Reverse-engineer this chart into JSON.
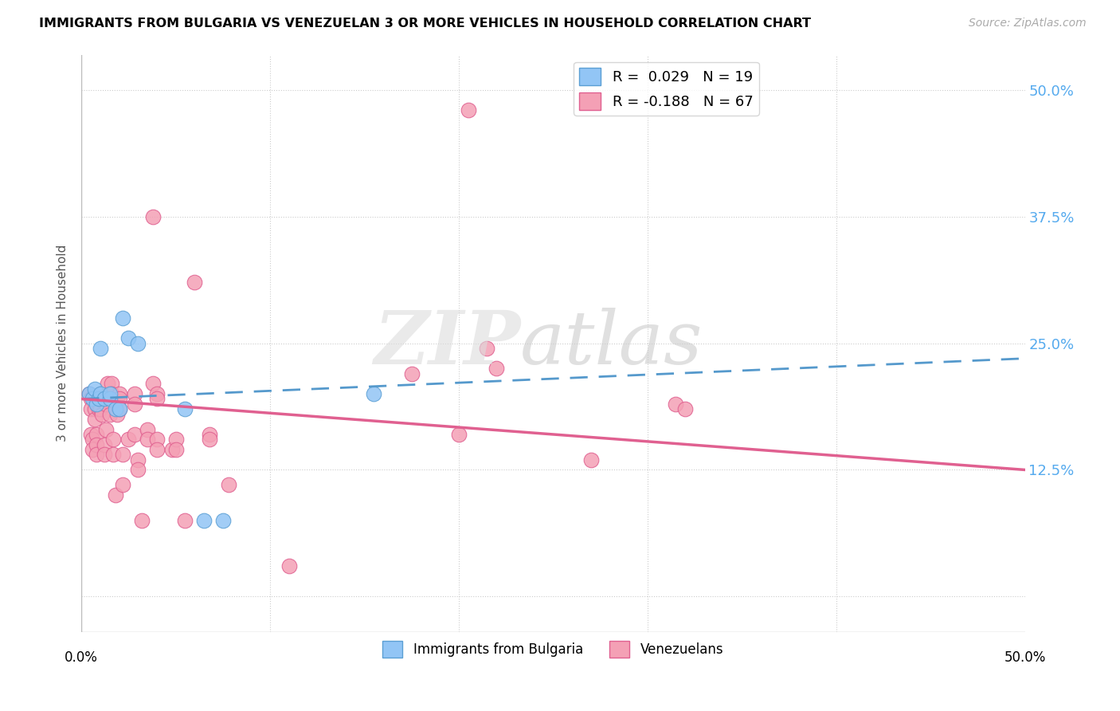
{
  "title": "IMMIGRANTS FROM BULGARIA VS VENEZUELAN 3 OR MORE VEHICLES IN HOUSEHOLD CORRELATION CHART",
  "source": "Source: ZipAtlas.com",
  "ylabel": "3 or more Vehicles in Household",
  "ytick_vals": [
    0.0,
    0.125,
    0.25,
    0.375,
    0.5
  ],
  "ytick_labels": [
    "",
    "12.5%",
    "25.0%",
    "37.5%",
    "50.0%"
  ],
  "xlim": [
    0.0,
    0.5
  ],
  "ylim": [
    -0.035,
    0.535
  ],
  "bulgaria_color": "#92C5F5",
  "venezuela_color": "#F4A0B5",
  "bulgaria_edge_color": "#5B9FD4",
  "venezuela_edge_color": "#E06090",
  "bulgaria_line_color": "#5599CC",
  "venezuela_line_color": "#E06090",
  "watermark_zip": "ZIP",
  "watermark_atlas": "atlas",
  "bulgaria_points": [
    [
      0.004,
      0.2
    ],
    [
      0.006,
      0.195
    ],
    [
      0.007,
      0.205
    ],
    [
      0.008,
      0.19
    ],
    [
      0.009,
      0.195
    ],
    [
      0.01,
      0.2
    ],
    [
      0.01,
      0.245
    ],
    [
      0.012,
      0.195
    ],
    [
      0.015,
      0.195
    ],
    [
      0.015,
      0.2
    ],
    [
      0.018,
      0.185
    ],
    [
      0.02,
      0.185
    ],
    [
      0.022,
      0.275
    ],
    [
      0.025,
      0.255
    ],
    [
      0.03,
      0.25
    ],
    [
      0.055,
      0.185
    ],
    [
      0.065,
      0.075
    ],
    [
      0.075,
      0.075
    ],
    [
      0.155,
      0.2
    ]
  ],
  "venezuela_points": [
    [
      0.004,
      0.2
    ],
    [
      0.005,
      0.195
    ],
    [
      0.005,
      0.185
    ],
    [
      0.005,
      0.16
    ],
    [
      0.006,
      0.155
    ],
    [
      0.006,
      0.145
    ],
    [
      0.007,
      0.195
    ],
    [
      0.007,
      0.185
    ],
    [
      0.007,
      0.175
    ],
    [
      0.008,
      0.16
    ],
    [
      0.008,
      0.15
    ],
    [
      0.008,
      0.14
    ],
    [
      0.009,
      0.195
    ],
    [
      0.009,
      0.185
    ],
    [
      0.01,
      0.2
    ],
    [
      0.01,
      0.195
    ],
    [
      0.01,
      0.185
    ],
    [
      0.011,
      0.18
    ],
    [
      0.012,
      0.15
    ],
    [
      0.012,
      0.14
    ],
    [
      0.013,
      0.165
    ],
    [
      0.013,
      0.19
    ],
    [
      0.014,
      0.21
    ],
    [
      0.015,
      0.18
    ],
    [
      0.016,
      0.21
    ],
    [
      0.016,
      0.2
    ],
    [
      0.017,
      0.155
    ],
    [
      0.017,
      0.14
    ],
    [
      0.018,
      0.1
    ],
    [
      0.019,
      0.18
    ],
    [
      0.02,
      0.2
    ],
    [
      0.02,
      0.195
    ],
    [
      0.02,
      0.185
    ],
    [
      0.022,
      0.14
    ],
    [
      0.022,
      0.11
    ],
    [
      0.025,
      0.155
    ],
    [
      0.028,
      0.2
    ],
    [
      0.028,
      0.19
    ],
    [
      0.028,
      0.16
    ],
    [
      0.03,
      0.135
    ],
    [
      0.03,
      0.125
    ],
    [
      0.032,
      0.075
    ],
    [
      0.035,
      0.165
    ],
    [
      0.035,
      0.155
    ],
    [
      0.038,
      0.375
    ],
    [
      0.038,
      0.21
    ],
    [
      0.04,
      0.2
    ],
    [
      0.04,
      0.195
    ],
    [
      0.04,
      0.155
    ],
    [
      0.04,
      0.145
    ],
    [
      0.048,
      0.145
    ],
    [
      0.05,
      0.155
    ],
    [
      0.05,
      0.145
    ],
    [
      0.055,
      0.075
    ],
    [
      0.06,
      0.31
    ],
    [
      0.068,
      0.16
    ],
    [
      0.068,
      0.155
    ],
    [
      0.078,
      0.11
    ],
    [
      0.11,
      0.03
    ],
    [
      0.175,
      0.22
    ],
    [
      0.2,
      0.16
    ],
    [
      0.205,
      0.48
    ],
    [
      0.215,
      0.245
    ],
    [
      0.22,
      0.225
    ],
    [
      0.27,
      0.135
    ],
    [
      0.315,
      0.19
    ],
    [
      0.32,
      0.185
    ]
  ]
}
